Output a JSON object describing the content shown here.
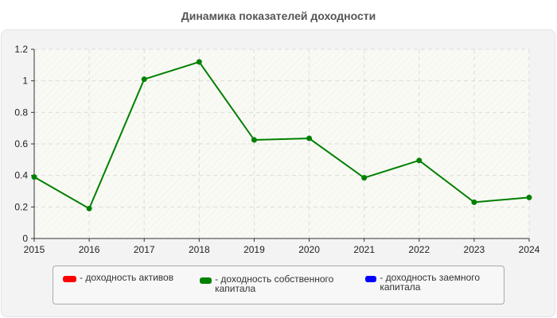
{
  "title": "Динамика показателей доходности",
  "chart_data": {
    "type": "line",
    "title": "Динамика показателей доходности",
    "xlabel": "",
    "ylabel": "",
    "categories": [
      "2015",
      "2016",
      "2017",
      "2018",
      "2019",
      "2020",
      "2021",
      "2022",
      "2023",
      "2024"
    ],
    "ylim": [
      0,
      1.2
    ],
    "yticks": [
      "0",
      "0.2",
      "0.4",
      "0.6",
      "0.8",
      "1",
      "1.2"
    ],
    "grid": true,
    "legend_position": "bottom",
    "series": [
      {
        "name": "доходность активов",
        "color": "#ff0000",
        "values": []
      },
      {
        "name": "доходность собственного капитала",
        "color": "#008000",
        "values": [
          0.39,
          0.19,
          1.01,
          1.12,
          0.625,
          0.635,
          0.385,
          0.495,
          0.23,
          0.26
        ]
      },
      {
        "name": "доходность заемного капитала",
        "color": "#0000ff",
        "values": []
      }
    ]
  },
  "legend": {
    "items": [
      {
        "label": "- доходность активов",
        "color": "#ff0000"
      },
      {
        "label": "- доходность собственного капитала",
        "color": "#008000"
      },
      {
        "label": "- доходность заемного капитала",
        "color": "#0000ff"
      }
    ]
  }
}
